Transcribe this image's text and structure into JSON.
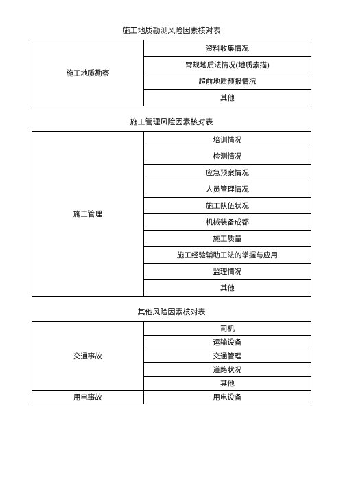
{
  "sections": [
    {
      "title": "施工地质勘测风险因素核对表",
      "heightClass": "t1",
      "groups": [
        {
          "label": "施工地质勘察",
          "items": [
            "资料收集情况",
            "常规地质法情况(地质素描)",
            "超前地质预报情况",
            "其他"
          ]
        }
      ]
    },
    {
      "title": "施工管理风险因素核对表",
      "heightClass": "t2",
      "groups": [
        {
          "label": "施工管理",
          "items": [
            "培训情况",
            "检测情况",
            "应急预案情况",
            "人员管理情况",
            "施工队伍状况",
            "机械装备成都",
            "施工质量",
            "施工经验辅助工法的掌握与应用",
            "监理情况",
            "其他"
          ]
        }
      ]
    },
    {
      "title": "其他风险因素核对表",
      "heightClass": "t3",
      "groups": [
        {
          "label": "交通事故",
          "items": [
            "司机",
            "运输设备",
            "交通管理",
            "道路状况",
            "其他"
          ]
        },
        {
          "label": "用电事故",
          "items": [
            "用电设备"
          ]
        }
      ]
    }
  ]
}
